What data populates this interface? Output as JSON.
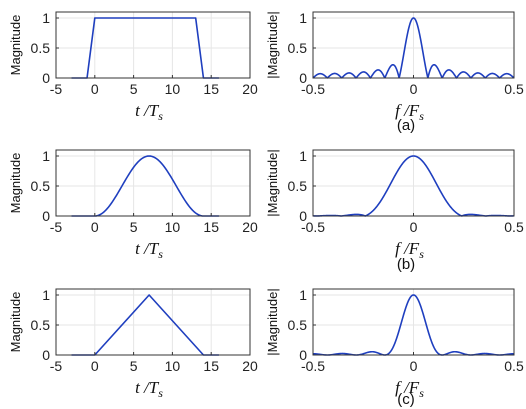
{
  "colors": {
    "line": "#1f3fbf",
    "grid": "#e6e6e6",
    "axes": "#333333"
  },
  "chart_data": [
    {
      "type": "line",
      "group": "a",
      "side": "time",
      "ylabel": "Magnitude",
      "xlabel_main": "t /T",
      "xlabel_sub": "s",
      "xlim": [
        -5,
        20
      ],
      "ylim": [
        0,
        1.1
      ],
      "xticks": [
        -5,
        0,
        5,
        10,
        15,
        20
      ],
      "yticks": [
        0,
        0.5,
        1
      ],
      "xtick_labels": [
        "-5",
        "0",
        "5",
        "10",
        "15",
        "20"
      ],
      "ytick_labels": [
        "0",
        "0.5",
        "1"
      ],
      "grid": true,
      "series": [
        {
          "shape": "trapezoid",
          "x": [
            -3,
            -1,
            0,
            13,
            14,
            16
          ],
          "y": [
            0,
            0,
            1,
            1,
            0,
            0
          ]
        }
      ]
    },
    {
      "type": "line",
      "group": "a",
      "side": "freq",
      "ylabel": "|Magnitude|",
      "xlabel_main": "f /F",
      "xlabel_sub": "s",
      "xlim": [
        -0.5,
        0.5
      ],
      "ylim": [
        0,
        1.1
      ],
      "xticks": [
        -0.5,
        0,
        0.5
      ],
      "yticks": [
        0,
        0.5,
        1
      ],
      "xtick_labels": [
        "-0.5",
        "0",
        "0.5"
      ],
      "ytick_labels": [
        "0",
        "0.5",
        "1"
      ],
      "grid": true,
      "series": [
        {
          "shape": "sinc",
          "N": 14,
          "sidelobe_scale": 1
        }
      ]
    },
    {
      "type": "line",
      "group": "b",
      "side": "time",
      "ylabel": "Magnitude",
      "xlabel_main": "t /T",
      "xlabel_sub": "s",
      "xlim": [
        -5,
        20
      ],
      "ylim": [
        0,
        1.1
      ],
      "xticks": [
        -5,
        0,
        5,
        10,
        15,
        20
      ],
      "yticks": [
        0,
        0.5,
        1
      ],
      "xtick_labels": [
        "-5",
        "0",
        "5",
        "10",
        "15",
        "20"
      ],
      "ytick_labels": [
        "0",
        "0.5",
        "1"
      ],
      "grid": true,
      "series": [
        {
          "shape": "raised-cosine",
          "x0": -3,
          "start": 0,
          "peak": 7,
          "end": 14,
          "x1": 16
        }
      ]
    },
    {
      "type": "line",
      "group": "b",
      "side": "freq",
      "ylabel": "|Magnitude|",
      "xlabel_main": "f /F",
      "xlabel_sub": "s",
      "xlim": [
        -0.5,
        0.5
      ],
      "ylim": [
        0,
        1.1
      ],
      "xticks": [
        -0.5,
        0,
        0.5
      ],
      "yticks": [
        0,
        0.5,
        1
      ],
      "xtick_labels": [
        "-0.5",
        "0",
        "0.5"
      ],
      "ytick_labels": [
        "0",
        "0.5",
        "1"
      ],
      "grid": true,
      "series": [
        {
          "shape": "hann-spectrum",
          "width": 0.12
        }
      ]
    },
    {
      "type": "line",
      "group": "c",
      "side": "time",
      "ylabel": "Magnitude",
      "xlabel_main": "t /T",
      "xlabel_sub": "s",
      "xlim": [
        -5,
        20
      ],
      "ylim": [
        0,
        1.1
      ],
      "xticks": [
        -5,
        0,
        5,
        10,
        15,
        20
      ],
      "yticks": [
        0,
        0.5,
        1
      ],
      "xtick_labels": [
        "-5",
        "0",
        "5",
        "10",
        "15",
        "20"
      ],
      "ytick_labels": [
        "0",
        "0.5",
        "1"
      ],
      "grid": true,
      "series": [
        {
          "shape": "triangle",
          "x": [
            -3,
            0,
            7,
            14,
            16
          ],
          "y": [
            0,
            0,
            1,
            0,
            0
          ]
        }
      ]
    },
    {
      "type": "line",
      "group": "c",
      "side": "freq",
      "ylabel": "|Magnitude|",
      "xlabel_main": "f /F",
      "xlabel_sub": "s",
      "xlim": [
        -0.5,
        0.5
      ],
      "ylim": [
        0,
        1.1
      ],
      "xticks": [
        -0.5,
        0,
        0.5
      ],
      "yticks": [
        0,
        0.5,
        1
      ],
      "xtick_labels": [
        "-0.5",
        "0",
        "0.5"
      ],
      "ytick_labels": [
        "0",
        "0.5",
        "1"
      ],
      "grid": true,
      "series": [
        {
          "shape": "sinc-squared",
          "N": 7
        }
      ]
    }
  ],
  "captions": [
    "(a)",
    "(b)",
    "(c)"
  ]
}
